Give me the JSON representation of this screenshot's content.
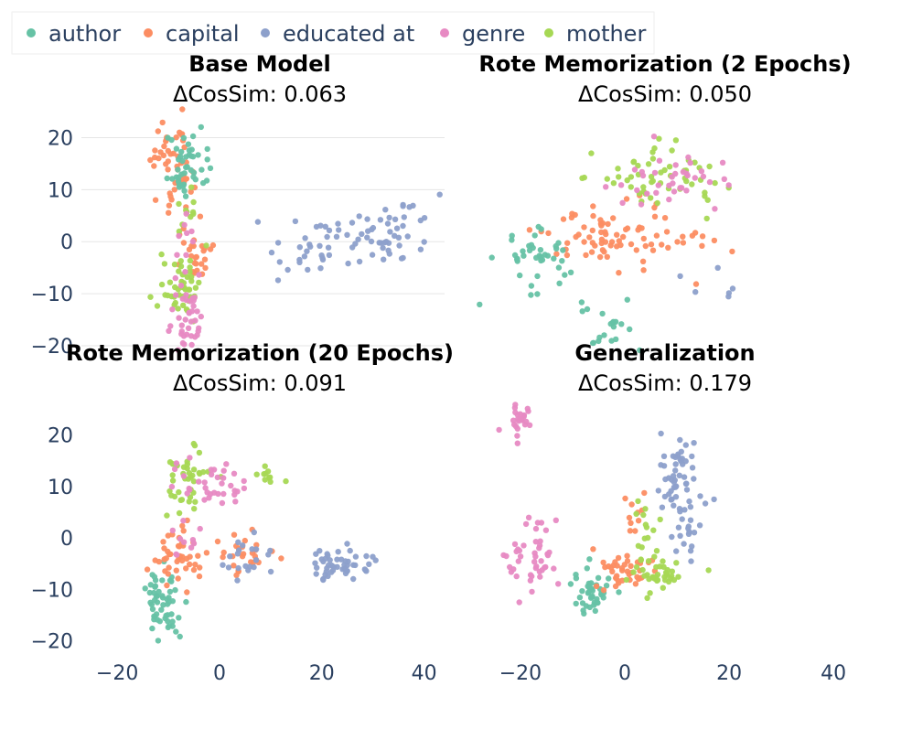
{
  "colors": {
    "author": "#66c2a5",
    "capital": "#fc8d62",
    "educated at": "#8da0cb",
    "genre": "#e78ac3",
    "mother": "#a6d854"
  },
  "legend": [
    "author",
    "capital",
    "educated at",
    "genre",
    "mother"
  ],
  "chart_data": [
    {
      "type": "scatter",
      "title": "Base Model",
      "subtitle": "ΔCosSim: 0.063",
      "xlim": [
        -27,
        44
      ],
      "ylim": [
        -20,
        25
      ],
      "yticks": [
        20,
        10,
        0,
        -10,
        -20
      ],
      "xticks": [],
      "grid": true,
      "clusters": [
        {
          "series": "capital",
          "cx": -9,
          "cy": 15,
          "sx": 2,
          "sy": 5,
          "n": 50
        },
        {
          "series": "capital",
          "cx": -5,
          "cy": -2,
          "sx": 2,
          "sy": 3,
          "n": 25
        },
        {
          "series": "author",
          "cx": -7,
          "cy": 14,
          "sx": 2,
          "sy": 3,
          "n": 45
        },
        {
          "series": "mother",
          "cx": -8,
          "cy": -8,
          "sx": 2,
          "sy": 3,
          "n": 45
        },
        {
          "series": "mother",
          "cx": -6,
          "cy": 5,
          "sx": 1.5,
          "sy": 2,
          "n": 10
        },
        {
          "series": "genre",
          "cx": -6,
          "cy": -15,
          "sx": 2,
          "sy": 4,
          "n": 40
        },
        {
          "series": "genre",
          "cx": -6,
          "cy": 0,
          "sx": 1.5,
          "sy": 3,
          "n": 10
        },
        {
          "series": "educated at",
          "cx": 17,
          "cy": -2,
          "sx": 5,
          "sy": 3,
          "n": 30
        },
        {
          "series": "educated at",
          "cx": 33,
          "cy": 2,
          "sx": 5,
          "sy": 3,
          "n": 50
        }
      ]
    },
    {
      "type": "scatter",
      "title": "Rote Memorization (2 Epochs)",
      "subtitle": "ΔCosSim: 0.050",
      "xlim": [
        -24,
        20
      ],
      "ylim": [
        -20,
        25
      ],
      "yticks": [],
      "xticks": [],
      "grid": false,
      "clusters": [
        {
          "series": "capital",
          "cx": -12,
          "cy": 1,
          "sx": 3,
          "sy": 3,
          "n": 40
        },
        {
          "series": "capital",
          "cx": -5,
          "cy": 0,
          "sx": 4,
          "sy": 3,
          "n": 40
        },
        {
          "series": "author",
          "cx": -18,
          "cy": -4,
          "sx": 2,
          "sy": 3,
          "n": 40
        },
        {
          "series": "author",
          "cx": -10,
          "cy": -17,
          "sx": 2,
          "sy": 3,
          "n": 25
        },
        {
          "series": "mother",
          "cx": -3,
          "cy": 12,
          "sx": 4,
          "sy": 3,
          "n": 55
        },
        {
          "series": "genre",
          "cx": -2,
          "cy": 11,
          "sx": 4,
          "sy": 2.5,
          "n": 40
        },
        {
          "series": "educated at",
          "cx": 14,
          "cy": -11,
          "sx": 3,
          "sy": 2,
          "n": 40
        },
        {
          "series": "educated at",
          "cx": 6,
          "cy": -7,
          "sx": 3,
          "sy": 2,
          "n": 15
        }
      ]
    },
    {
      "type": "scatter",
      "title": "Rote Memorization (20 Epochs)",
      "subtitle": "ΔCosSim: 0.091",
      "xlim": [
        -27,
        44
      ],
      "ylim": [
        -22,
        27
      ],
      "yticks": [
        20,
        10,
        0,
        -10,
        -20
      ],
      "xticks": [
        -20,
        0,
        20,
        40
      ],
      "grid": false,
      "clusters": [
        {
          "series": "author",
          "cx": -11,
          "cy": -12,
          "sx": 2,
          "sy": 4,
          "n": 55
        },
        {
          "series": "capital",
          "cx": -8,
          "cy": -4,
          "sx": 2.5,
          "sy": 3,
          "n": 45
        },
        {
          "series": "capital",
          "cx": 5,
          "cy": -3,
          "sx": 3,
          "sy": 2,
          "n": 25
        },
        {
          "series": "mother",
          "cx": -6,
          "cy": 12,
          "sx": 2,
          "sy": 3,
          "n": 40
        },
        {
          "series": "mother",
          "cx": 9,
          "cy": 12,
          "sx": 1.5,
          "sy": 1,
          "n": 10
        },
        {
          "series": "genre",
          "cx": -1,
          "cy": 10,
          "sx": 3,
          "sy": 2,
          "n": 35
        },
        {
          "series": "genre",
          "cx": -7,
          "cy": 0,
          "sx": 1.5,
          "sy": 1.5,
          "n": 10
        },
        {
          "series": "educated at",
          "cx": 5,
          "cy": -4,
          "sx": 2.5,
          "sy": 2.5,
          "n": 20
        },
        {
          "series": "educated at",
          "cx": 23,
          "cy": -5,
          "sx": 3,
          "sy": 1.5,
          "n": 50
        }
      ]
    },
    {
      "type": "scatter",
      "title": "Generalization",
      "subtitle": "ΔCosSim: 0.179",
      "xlim": [
        -27,
        44
      ],
      "ylim": [
        -22,
        27
      ],
      "yticks": [],
      "xticks": [
        -20,
        0,
        20,
        40
      ],
      "grid": false,
      "clusters": [
        {
          "series": "genre",
          "cx": -20,
          "cy": 23,
          "sx": 1.5,
          "sy": 2,
          "n": 25
        },
        {
          "series": "genre",
          "cx": -18,
          "cy": -4,
          "sx": 2.5,
          "sy": 4,
          "n": 45
        },
        {
          "series": "author",
          "cx": -6,
          "cy": -10,
          "sx": 2,
          "sy": 2,
          "n": 40
        },
        {
          "series": "capital",
          "cx": -1,
          "cy": -6,
          "sx": 3,
          "sy": 2,
          "n": 40
        },
        {
          "series": "capital",
          "cx": 2,
          "cy": 4,
          "sx": 2,
          "sy": 3,
          "n": 10
        },
        {
          "series": "mother",
          "cx": 6,
          "cy": -7,
          "sx": 3,
          "sy": 2,
          "n": 40
        },
        {
          "series": "mother",
          "cx": 4,
          "cy": 2,
          "sx": 2,
          "sy": 3,
          "n": 12
        },
        {
          "series": "educated at",
          "cx": 10,
          "cy": 12,
          "sx": 2,
          "sy": 4,
          "n": 50
        },
        {
          "series": "educated at",
          "cx": 12,
          "cy": 2,
          "sx": 2,
          "sy": 3,
          "n": 20
        }
      ]
    }
  ]
}
